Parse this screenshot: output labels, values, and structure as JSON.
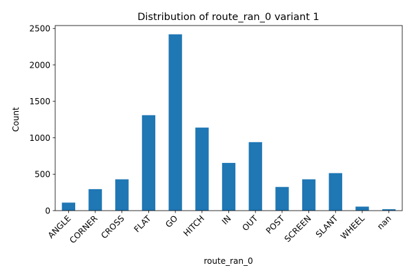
{
  "chart_data": {
    "type": "bar",
    "title": "Distribution of route_ran_0 variant 1",
    "xlabel": "route_ran_0",
    "ylabel": "Count",
    "categories": [
      "ANGLE",
      "CORNER",
      "CROSS",
      "FLAT",
      "GO",
      "HITCH",
      "IN",
      "OUT",
      "POST",
      "SCREEN",
      "SLANT",
      "WHEEL",
      "nan"
    ],
    "values": [
      110,
      295,
      430,
      1310,
      2420,
      1140,
      655,
      940,
      325,
      430,
      515,
      55,
      20
    ],
    "ylim": [
      0,
      2540
    ],
    "yticks": [
      0,
      500,
      1000,
      1500,
      2000,
      2500
    ],
    "bar_color": "#1f77b4",
    "grid": false,
    "legend": "none",
    "xtick_rotation": 45
  }
}
